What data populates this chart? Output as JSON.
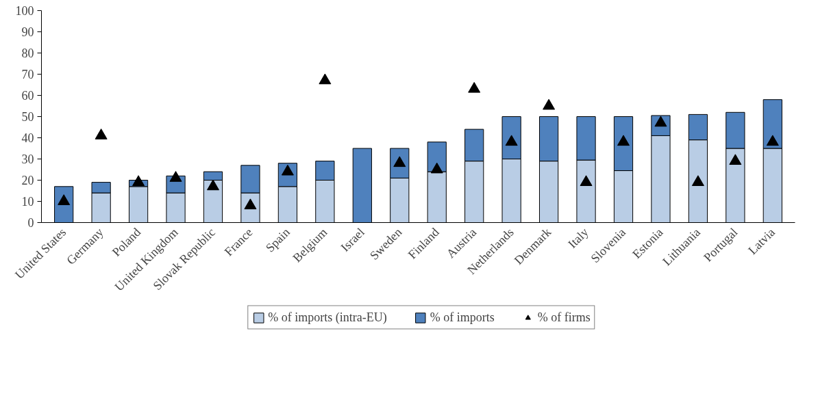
{
  "chart_data": {
    "type": "bar",
    "stacked": true,
    "categories": [
      "United States",
      "Germany",
      "Poland",
      "United Kingdom",
      "Slovak Republic",
      "France",
      "Spain",
      "Belgium",
      "Israel",
      "Sweden",
      "Finland",
      "Austria",
      "Netherlands",
      "Denmark",
      "Italy",
      "Slovenia",
      "Estonia",
      "Lithuania",
      "Portugal",
      "Latvia"
    ],
    "series": [
      {
        "name": "% of imports (intra-EU)",
        "color": "#b9cde5",
        "values": [
          null,
          14,
          17,
          14,
          20,
          14,
          17,
          20,
          null,
          21,
          24,
          29,
          30,
          29,
          29.5,
          24.5,
          41,
          39,
          35,
          35
        ]
      },
      {
        "name": "% of imports",
        "color": "#4f81bd",
        "values": [
          17,
          5,
          3,
          8,
          4,
          13,
          11,
          9,
          35,
          14,
          14,
          15,
          20,
          21,
          20.5,
          25.5,
          9.5,
          12,
          17,
          23
        ]
      },
      {
        "name": "% of firms",
        "type": "scatter",
        "color": "#000000",
        "values": [
          10,
          41,
          19,
          21,
          17,
          8,
          24,
          67,
          null,
          28,
          25,
          63,
          38,
          55,
          19,
          38,
          47,
          19,
          29,
          38
        ]
      }
    ],
    "marker": "triangle",
    "ylim": [
      0,
      100
    ],
    "yticks": [
      0,
      10,
      20,
      30,
      40,
      50,
      60,
      70,
      80,
      90,
      100
    ],
    "legend": "bottom"
  }
}
